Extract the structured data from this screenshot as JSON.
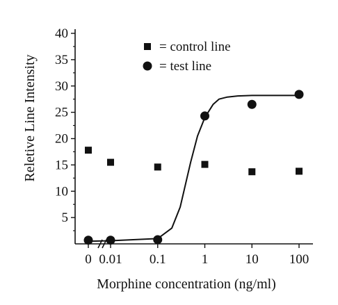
{
  "chart_data": {
    "type": "scatter",
    "title": "",
    "xlabel": "Morphine concentration (ng/ml)",
    "ylabel": "Reletive Line Intensity",
    "x_scale": "log",
    "x_ticks": [
      "0",
      "0.01",
      "0.1",
      "1",
      "10",
      "100"
    ],
    "y_ticks": [
      "5",
      "10",
      "15",
      "20",
      "25",
      "30",
      "35",
      "40"
    ],
    "ylim": [
      0,
      40
    ],
    "legend_position": "top-right",
    "series": [
      {
        "name": "control line",
        "marker": "square",
        "color": "#111111",
        "points": [
          {
            "x": "0",
            "y": 17.8
          },
          {
            "x": "0.01",
            "y": 15.5
          },
          {
            "x": "0.1",
            "y": 14.6
          },
          {
            "x": "1",
            "y": 15.1
          },
          {
            "x": "10",
            "y": 13.7
          },
          {
            "x": "100",
            "y": 13.8
          }
        ]
      },
      {
        "name": "test line",
        "marker": "circle",
        "color": "#111111",
        "points": [
          {
            "x": "0",
            "y": 0.7
          },
          {
            "x": "0.01",
            "y": 0.7
          },
          {
            "x": "0.1",
            "y": 0.8
          },
          {
            "x": "1",
            "y": 24.3
          },
          {
            "x": "10",
            "y": 26.5
          },
          {
            "x": "100",
            "y": 28.4
          }
        ]
      }
    ],
    "fit_curve": {
      "series": "test line",
      "x": [
        0,
        0.01,
        0.1,
        0.2,
        0.3,
        0.5,
        0.7,
        1,
        1.5,
        2,
        3,
        5,
        10,
        100
      ],
      "y": [
        0.5,
        0.6,
        1.0,
        3.0,
        7.0,
        15.5,
        20.5,
        24.0,
        26.5,
        27.5,
        27.9,
        28.1,
        28.2,
        28.2
      ]
    },
    "legend": [
      {
        "marker": "square",
        "label": "= control line"
      },
      {
        "marker": "circle",
        "label": "= test line"
      }
    ]
  }
}
